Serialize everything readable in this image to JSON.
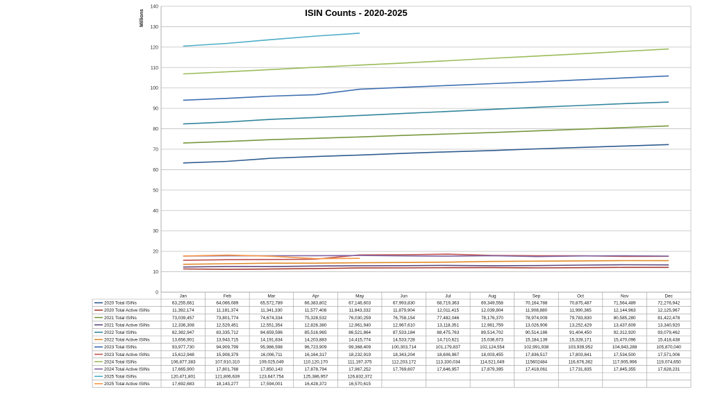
{
  "chart_data": {
    "type": "line",
    "title": "ISIN Counts  -  2020-2025",
    "xlabel": "",
    "ylabel": "Millions",
    "ylim": [
      0,
      140
    ],
    "yticks": [
      0,
      10,
      20,
      30,
      40,
      50,
      60,
      70,
      80,
      90,
      100,
      110,
      120,
      130,
      140
    ],
    "grid": true,
    "legend": "data-table-below",
    "categories": [
      "Jan",
      "Feb",
      "Mar",
      "Apr",
      "May",
      "Jun",
      "Jul",
      "Aug",
      "Sep",
      "Oct",
      "Nov",
      "Dec"
    ],
    "series": [
      {
        "name": "2020 Total ISINs",
        "color": "#2e5b8e",
        "values": [
          63.255661,
          64.066089,
          65.572789,
          66.383802,
          67.146603,
          67.99383,
          68.719363,
          69.349558,
          70.164788,
          70.875487,
          71.564489,
          72.276942
        ],
        "labels": [
          "63,255,661",
          "64,066,089",
          "65,572,789",
          "66,383,802",
          "67,146,603",
          "67,993,830",
          "68,719,363",
          "69,349,558",
          "70,164,788",
          "70,875,487",
          "71,564,489",
          "72,276,942"
        ]
      },
      {
        "name": "2020 Total Active ISINs",
        "color": "#a83c34",
        "values": [
          11.392174,
          11.181374,
          11.34133,
          11.577408,
          11.843332,
          11.879904,
          12.011415,
          12.039804,
          11.90888,
          11.990365,
          12.144963,
          12.125967
        ],
        "labels": [
          "11,392,174",
          "11,181,374",
          "11,341,330",
          "11,577,408",
          "11,843,332",
          "11,879,904",
          "12,011,415",
          "12,039,804",
          "11,908,880",
          "11,990,365",
          "12,144,963",
          "12,125,967"
        ]
      },
      {
        "name": "2021 Total ISINs",
        "color": "#77973d",
        "values": [
          73.039457,
          73.801774,
          74.674334,
          75.328532,
          76.030259,
          76.758154,
          77.482046,
          78.17637,
          78.974009,
          79.78383,
          80.58528,
          81.422478
        ],
        "labels": [
          "73,039,457",
          "73,801,774",
          "74,674,334",
          "75,328,532",
          "76,030,259",
          "76,758,154",
          "77,482,046",
          "78,176,370",
          "78,974,009",
          "79,783,830",
          "80,585,280",
          "81,422,478"
        ]
      },
      {
        "name": "2021 Total Active ISINs",
        "color": "#604a7b",
        "values": [
          12.336308,
          12.529451,
          12.551354,
          12.82638,
          12.96194,
          12.96761,
          13.118351,
          12.961759,
          13.026906,
          13.252429,
          13.437609,
          13.34092
        ],
        "labels": [
          "12,336,308",
          "12,529,451",
          "12,551,354",
          "12,826,380",
          "12,961,940",
          "12,967,610",
          "13,118,351",
          "12,961,759",
          "13,026,906",
          "13,252,429",
          "13,437,609",
          "13,340,920"
        ]
      },
      {
        "name": "2022 Total ISINs",
        "color": "#31859c",
        "values": [
          82.382947,
          83.335712,
          84.659596,
          85.516965,
          86.521864,
          87.533184,
          88.475763,
          89.514702,
          90.514186,
          91.40445,
          92.31292,
          93.079462
        ],
        "labels": [
          "82,382,947",
          "83,335,712",
          "84,659,596",
          "85,516,965",
          "86,521,864",
          "87,533,184",
          "88,475,763",
          "89,514,702",
          "90,514,186",
          "91,404,450",
          "92,312,920",
          "93,079,462"
        ]
      },
      {
        "name": "2022 Total Active ISINs",
        "color": "#e08a2b",
        "values": [
          13.656901,
          13.943715,
          14.191834,
          14.203883,
          14.415774,
          14.533728,
          14.710621,
          15.036673,
          15.184139,
          15.328171,
          15.470096,
          15.418438
        ],
        "labels": [
          "13,656,901",
          "13,943,715",
          "14,191,834",
          "14,203,883",
          "14,415,774",
          "14,533,728",
          "14,710,621",
          "15,036,673",
          "15,184,139",
          "15,328,171",
          "15,470,096",
          "15,418,438"
        ]
      },
      {
        "name": "2023 Total ISINs",
        "color": "#3d6eb0",
        "values": [
          93.97773,
          94.909799,
          95.986598,
          96.723909,
          99.368409,
          100.303714,
          101.179837,
          102.124554,
          102.991938,
          103.939952,
          104.943288,
          105.87004
        ],
        "labels": [
          "93,977,730",
          "94,909,799",
          "95,986,598",
          "96,723,909",
          "99,368,409",
          "100,303,714",
          "101,179,837",
          "102,124,554",
          "102,991,938",
          "103,939,952",
          "104,943,288",
          "105,870,040"
        ]
      },
      {
        "name": "2023 Total Active ISINs",
        "color": "#c0504d",
        "values": [
          15.612948,
          15.908379,
          16.006711,
          16.164317,
          18.232919,
          18.343204,
          18.606967,
          18.003455,
          17.836517,
          17.803841,
          17.5345,
          17.571006
        ],
        "labels": [
          "15,612,948",
          "15,908,379",
          "16,006,711",
          "16,164,317",
          "18,232,919",
          "18,343,204",
          "18,606,967",
          "18,003,455",
          "17,836,517",
          "17,803,841",
          "17,534,500",
          "17,571,006"
        ]
      },
      {
        "name": "2024 Total ISINs",
        "color": "#9bbb59",
        "values": [
          106.877383,
          107.91031,
          109.025049,
          110.12017,
          111.197375,
          112.203172,
          113.330034,
          114.521049,
          115.602484,
          116.676362,
          117.905996,
          119.07465
        ],
        "labels": [
          "106,877,383",
          "107,910,310",
          "109,025,049",
          "110,120,170",
          "111,197,375",
          "112,203,172",
          "113,330,034",
          "114,521,049",
          "115602484",
          "116,676,362",
          "117,905,996",
          "119,074,650"
        ]
      },
      {
        "name": "2024 Total Active ISINs",
        "color": "#8064a2",
        "values": [
          17.6659,
          17.801768,
          17.850143,
          17.878794,
          17.967252,
          17.769607,
          17.646957,
          17.879395,
          17.418061,
          17.731835,
          17.845355,
          17.628231
        ],
        "labels": [
          "17,665,900",
          "17,801,768",
          "17,850,143",
          "17,878,794",
          "17,967,252",
          "17,769,607",
          "17,646,957",
          "17,879,395",
          "17,418,061",
          "17,731,835",
          "17,845,355",
          "17,628,231"
        ]
      },
      {
        "name": "2025 Total ISINs",
        "color": "#4bacc6",
        "values": [
          120.471801,
          121.806639,
          123.647754,
          125.386957,
          126.832372,
          null,
          null,
          null,
          null,
          null,
          null,
          null
        ],
        "labels": [
          "120,471,801",
          "121,806,639",
          "123,647,754",
          "125,386,957",
          "126,832,372",
          "",
          "",
          "",
          "",
          "",
          "",
          ""
        ]
      },
      {
        "name": "2025 Total Active ISINs",
        "color": "#f79646",
        "values": [
          17.692683,
          18.143277,
          17.594001,
          16.428372,
          16.570615,
          null,
          null,
          null,
          null,
          null,
          null,
          null
        ],
        "labels": [
          "17,692,683",
          "18,143,277",
          "17,594,001",
          "16,428,372",
          "16,570,615",
          "",
          "",
          "",
          "",
          "",
          "",
          ""
        ]
      }
    ]
  }
}
